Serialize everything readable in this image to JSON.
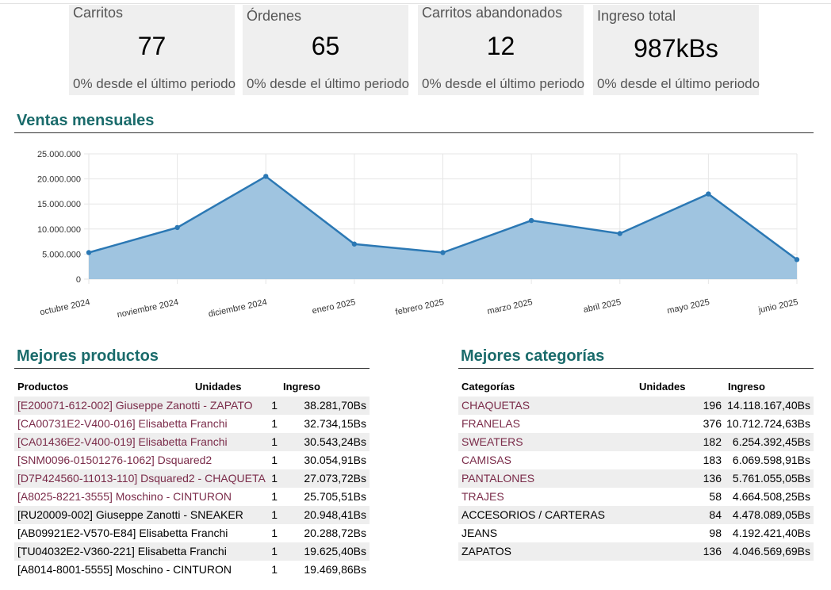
{
  "cards": [
    {
      "title": "Carritos",
      "value": "77",
      "footnote": "0% desde el último periodo"
    },
    {
      "title": "Órdenes",
      "value": "65",
      "footnote": "0% desde el último periodo"
    },
    {
      "title": "Carritos abandonados",
      "value": "12",
      "footnote": "0% desde el último periodo"
    },
    {
      "title": "Ingreso total",
      "value": "987kBs",
      "footnote": "0% desde el último periodo"
    }
  ],
  "sales": {
    "title": "Ventas mensuales"
  },
  "chart_data": {
    "type": "area",
    "title": "",
    "xlabel": "",
    "ylabel": "",
    "categories": [
      "octubre 2024",
      "noviembre 2024",
      "diciembre 2024",
      "enero 2025",
      "febrero 2025",
      "marzo 2025",
      "abril 2025",
      "mayo 2025",
      "junio 2025"
    ],
    "values": [
      5300000,
      10300000,
      20500000,
      7000000,
      5300000,
      11700000,
      9100000,
      17000000,
      3900000
    ],
    "ylim": [
      0,
      25000000
    ],
    "yticks": [
      "0",
      "5.000.000",
      "10.000.000",
      "15.000.000",
      "20.000.000",
      "25.000.000"
    ],
    "grid": true,
    "line_color": "#2b78b4",
    "fill_color": "#9fc4e0"
  },
  "products": {
    "title": "Mejores productos",
    "headers": {
      "name": "Productos",
      "units": "Unidades",
      "income": "Ingreso"
    },
    "rows": [
      {
        "name": "[E200071-612-002] Giuseppe Zanotti - ZAPATO",
        "units": "1",
        "income": "38.281,70Bs",
        "link": true
      },
      {
        "name": "[CA00731E2-V400-016] Elisabetta Franchi",
        "units": "1",
        "income": "32.734,15Bs",
        "link": true
      },
      {
        "name": "[CA01436E2-V400-019] Elisabetta Franchi",
        "units": "1",
        "income": "30.543,24Bs",
        "link": true
      },
      {
        "name": "[SNM0096-01501276-1062] Dsquared2",
        "units": "1",
        "income": "30.054,91Bs",
        "link": true
      },
      {
        "name": "[D7P424560-11013-110] Dsquared2 - CHAQUETA",
        "units": "1",
        "income": "27.073,72Bs",
        "link": true
      },
      {
        "name": "[A8025-8221-3555] Moschino - CINTURON",
        "units": "1",
        "income": "25.705,51Bs",
        "link": true
      },
      {
        "name": "[RU20009-002] Giuseppe Zanotti - SNEAKER",
        "units": "1",
        "income": "20.948,41Bs",
        "link": false
      },
      {
        "name": "[AB09921E2-V570-E84] Elisabetta Franchi",
        "units": "1",
        "income": "20.288,72Bs",
        "link": false
      },
      {
        "name": "[TU04032E2-V360-221] Elisabetta Franchi",
        "units": "1",
        "income": "19.625,40Bs",
        "link": false
      },
      {
        "name": "[A8014-8001-5555] Moschino - CINTURON",
        "units": "1",
        "income": "19.469,86Bs",
        "link": false
      }
    ]
  },
  "categories": {
    "title": "Mejores categorías",
    "headers": {
      "name": "Categorías",
      "units": "Unidades",
      "income": "Ingreso"
    },
    "rows": [
      {
        "name": "CHAQUETAS",
        "units": "196",
        "income": "14.118.167,40Bs",
        "link": true
      },
      {
        "name": "FRANELAS",
        "units": "376",
        "income": "10.712.724,63Bs",
        "link": true
      },
      {
        "name": "SWEATERS",
        "units": "182",
        "income": "6.254.392,45Bs",
        "link": true
      },
      {
        "name": "CAMISAS",
        "units": "183",
        "income": "6.069.598,91Bs",
        "link": true
      },
      {
        "name": "PANTALONES",
        "units": "136",
        "income": "5.761.055,05Bs",
        "link": true
      },
      {
        "name": "TRAJES",
        "units": "58",
        "income": "4.664.508,25Bs",
        "link": true
      },
      {
        "name": "ACCESORIOS / CARTERAS",
        "units": "84",
        "income": "4.478.089,05Bs",
        "link": false
      },
      {
        "name": "JEANS",
        "units": "98",
        "income": "4.192.421,40Bs",
        "link": false
      },
      {
        "name": "ZAPATOS",
        "units": "136",
        "income": "4.046.569,69Bs",
        "link": false
      }
    ]
  }
}
